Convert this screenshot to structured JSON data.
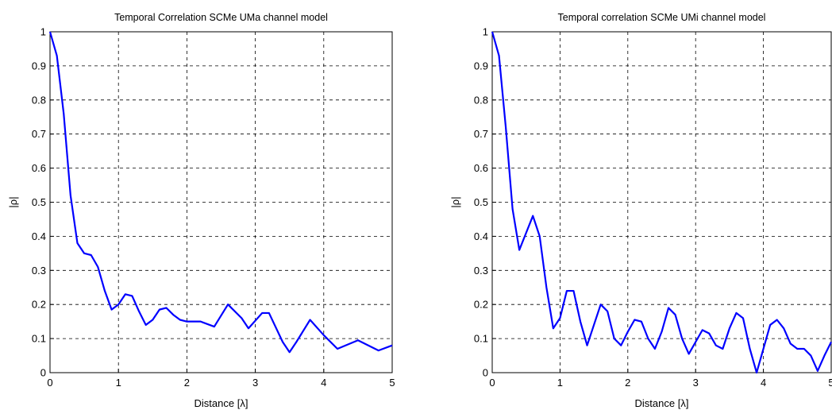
{
  "chart_data": [
    {
      "type": "line",
      "title": "Temporal Correlation SCMe UMa channel model",
      "xlabel": "Distance [λ]",
      "ylabel": "|ρ|",
      "xlim": [
        0,
        5
      ],
      "xticks": [
        0,
        1,
        2,
        3,
        4,
        5
      ],
      "ylim": [
        0,
        1
      ],
      "yticks": [
        0,
        0.1,
        0.2,
        0.3,
        0.4,
        0.5,
        0.6,
        0.7,
        0.8,
        0.9,
        1
      ],
      "grid": true,
      "series": [
        {
          "color": "#0000ff",
          "x": [
            0,
            0.1,
            0.2,
            0.3,
            0.4,
            0.5,
            0.6,
            0.7,
            0.8,
            0.9,
            1.0,
            1.1,
            1.2,
            1.3,
            1.4,
            1.5,
            1.6,
            1.7,
            1.8,
            1.9,
            2.0,
            2.2,
            2.4,
            2.6,
            2.8,
            2.9,
            3.1,
            3.2,
            3.4,
            3.5,
            3.6,
            3.8,
            4.0,
            4.2,
            4.5,
            4.8,
            5.0
          ],
          "values": [
            1.0,
            0.93,
            0.76,
            0.52,
            0.38,
            0.35,
            0.345,
            0.31,
            0.24,
            0.185,
            0.2,
            0.23,
            0.225,
            0.18,
            0.14,
            0.155,
            0.185,
            0.19,
            0.17,
            0.155,
            0.15,
            0.15,
            0.135,
            0.2,
            0.16,
            0.13,
            0.175,
            0.175,
            0.09,
            0.06,
            0.09,
            0.155,
            0.11,
            0.07,
            0.095,
            0.065,
            0.08
          ]
        }
      ]
    },
    {
      "type": "line",
      "title": "Temporal correlation SCMe UMi channel model",
      "xlabel": "Distance [λ]",
      "ylabel": "|ρ|",
      "xlim": [
        0,
        5
      ],
      "xticks": [
        0,
        1,
        2,
        3,
        4,
        5
      ],
      "ylim": [
        0,
        1
      ],
      "yticks": [
        0,
        0.1,
        0.2,
        0.3,
        0.4,
        0.5,
        0.6,
        0.7,
        0.8,
        0.9,
        1
      ],
      "grid": true,
      "series": [
        {
          "color": "#0000ff",
          "x": [
            0,
            0.1,
            0.2,
            0.3,
            0.4,
            0.5,
            0.6,
            0.7,
            0.8,
            0.9,
            1.0,
            1.1,
            1.2,
            1.3,
            1.4,
            1.5,
            1.6,
            1.7,
            1.8,
            1.9,
            2.0,
            2.1,
            2.2,
            2.3,
            2.4,
            2.5,
            2.6,
            2.7,
            2.8,
            2.9,
            3.0,
            3.1,
            3.2,
            3.3,
            3.4,
            3.5,
            3.6,
            3.7,
            3.8,
            3.9,
            4.0,
            4.1,
            4.2,
            4.3,
            4.4,
            4.5,
            4.6,
            4.7,
            4.8,
            4.9,
            5.0
          ],
          "values": [
            1.0,
            0.93,
            0.72,
            0.48,
            0.36,
            0.41,
            0.46,
            0.4,
            0.25,
            0.13,
            0.16,
            0.24,
            0.24,
            0.15,
            0.08,
            0.14,
            0.2,
            0.18,
            0.1,
            0.08,
            0.12,
            0.155,
            0.15,
            0.1,
            0.07,
            0.12,
            0.19,
            0.17,
            0.1,
            0.055,
            0.09,
            0.125,
            0.115,
            0.08,
            0.07,
            0.13,
            0.175,
            0.16,
            0.07,
            0.0,
            0.07,
            0.14,
            0.155,
            0.13,
            0.085,
            0.07,
            0.07,
            0.05,
            0.005,
            0.05,
            0.09
          ]
        }
      ]
    }
  ]
}
